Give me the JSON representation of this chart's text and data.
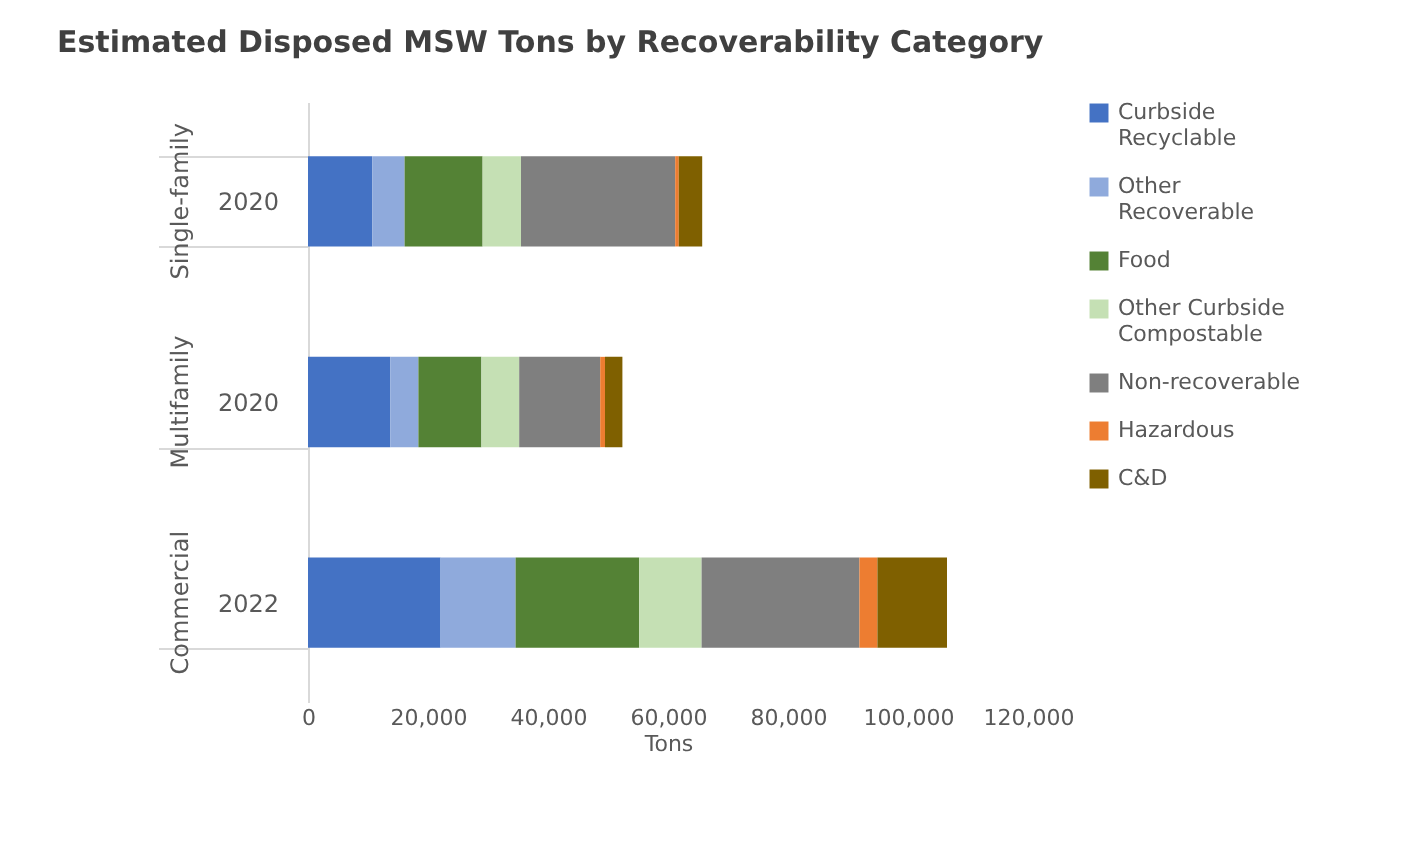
{
  "chart_data": {
    "type": "bar",
    "orientation": "horizontal",
    "stacked": true,
    "title": "Estimated Disposed MSW Tons by Recoverability Category",
    "xlabel": "Tons",
    "categories": [
      "2020",
      "2020",
      "2022"
    ],
    "annotations": [
      "Single-family",
      "Multifamily",
      "Commercial"
    ],
    "xlim": [
      0,
      120000
    ],
    "xticks": [
      {
        "value": 0,
        "label": "0"
      },
      {
        "value": 20000,
        "label": "20,000"
      },
      {
        "value": 40000,
        "label": "40,000"
      },
      {
        "value": 60000,
        "label": "60,000"
      },
      {
        "value": 80000,
        "label": "80,000"
      },
      {
        "value": 100000,
        "label": "100,000"
      },
      {
        "value": 120000,
        "label": "120,000"
      }
    ],
    "grid": false,
    "legend": "right",
    "series": [
      {
        "name": "Curbside Recyclable",
        "color": "#4472c4",
        "values": [
          10700,
          13700,
          22100
        ]
      },
      {
        "name": "Other Recoverable",
        "color": "#8faadc",
        "values": [
          5400,
          4700,
          12500
        ]
      },
      {
        "name": "Food",
        "color": "#548235",
        "values": [
          13000,
          10500,
          20600
        ]
      },
      {
        "name": "Other Curbside Compostable",
        "color": "#c5e0b4",
        "values": [
          6400,
          6300,
          10400
        ]
      },
      {
        "name": "Non-recoverable",
        "color": "#7f7f7f",
        "values": [
          25700,
          13500,
          26300
        ]
      },
      {
        "name": "Hazardous",
        "color": "#ed7d31",
        "values": [
          600,
          800,
          3000
        ]
      },
      {
        "name": "C&D",
        "color": "#7f6000",
        "values": [
          3900,
          2900,
          11600
        ]
      }
    ]
  }
}
